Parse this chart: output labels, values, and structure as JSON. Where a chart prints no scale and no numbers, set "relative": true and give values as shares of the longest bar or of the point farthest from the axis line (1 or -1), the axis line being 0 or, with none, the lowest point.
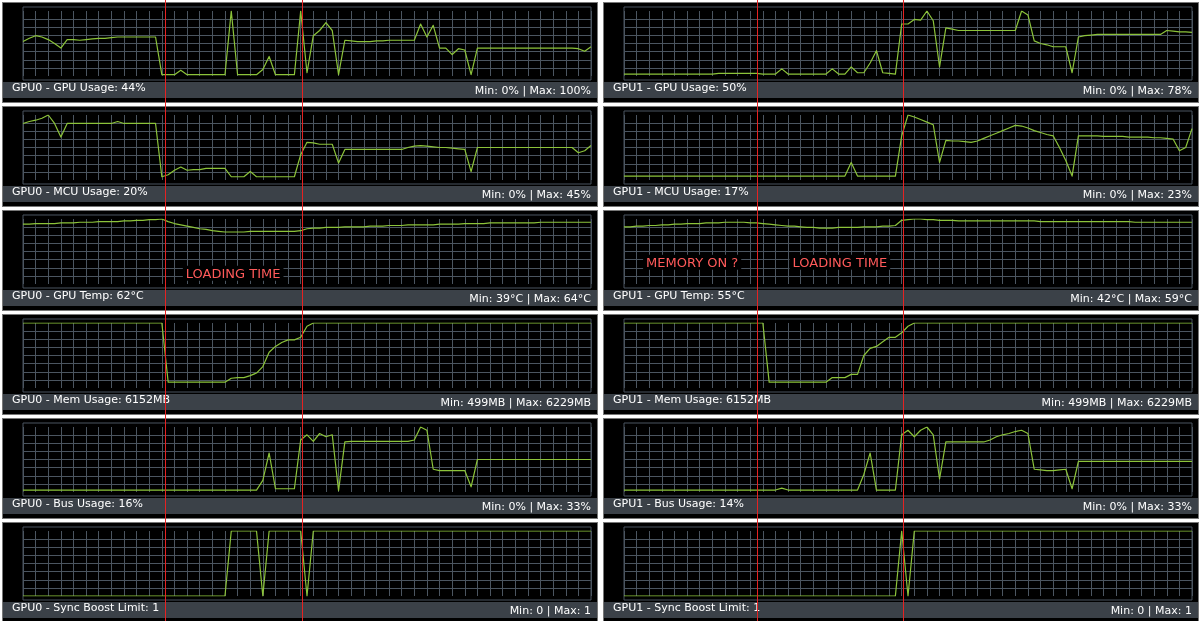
{
  "chart_data": [
    {
      "type": "line",
      "title": "GPU0 - GPU Usage: 44%",
      "annotations": [
        "Min: 0% | Max: 100%"
      ],
      "relative": true,
      "color": "#8cc33a",
      "marker": "none",
      "grid": true,
      "categories": [
        null,
        null,
        null,
        null,
        null,
        null,
        null,
        null,
        null,
        null,
        null,
        null,
        null,
        null,
        null,
        null,
        null,
        null,
        null,
        null,
        null,
        null,
        null,
        null,
        null,
        null,
        null,
        null,
        null,
        null,
        null,
        null,
        null,
        null,
        null,
        null,
        null,
        null,
        null,
        null,
        null,
        null,
        null,
        null,
        null,
        null,
        null,
        null,
        null,
        null,
        null,
        null,
        null,
        null,
        null,
        null,
        null,
        null,
        null,
        null,
        null,
        null,
        null,
        null,
        null,
        null,
        null,
        null,
        null,
        null,
        null,
        null,
        null,
        null,
        null,
        null,
        null,
        null,
        null,
        null,
        null,
        null,
        null,
        null,
        null,
        null,
        null,
        null,
        null,
        null,
        null
      ],
      "values": [
        0.53,
        0.58,
        0.62,
        0.6,
        0.56,
        0.5,
        0.43,
        0.56,
        0.56,
        0.55,
        0.56,
        0.57,
        0.58,
        0.58,
        0.59,
        0.6,
        0.6,
        0.6,
        0.6,
        0.6,
        0.6,
        0.6,
        0.02,
        0.02,
        0.02,
        0.09,
        0.02,
        0.02,
        0.02,
        0.02,
        0.02,
        0.02,
        0.02,
        1,
        0.02,
        0.02,
        0.02,
        0.02,
        0.1,
        0.3,
        0.02,
        0.02,
        0.02,
        0.02,
        1,
        0.05,
        0.62,
        0.7,
        0.82,
        0.7,
        0.02,
        0.55,
        0.54,
        0.53,
        0.53,
        0.53,
        0.54,
        0.54,
        0.55,
        0.55,
        0.55,
        0.55,
        0.55,
        0.8,
        0.6,
        0.78,
        0.43,
        0.43,
        0.33,
        0.42,
        0.4,
        0.02,
        0.43,
        0.43,
        0.43,
        0.43,
        0.43,
        0.43,
        0.43,
        0.43,
        0.43,
        0.43,
        0.43,
        0.43,
        0.43,
        0.43,
        0.43,
        0.43,
        0.42,
        0.38,
        0.45
      ]
    },
    {
      "type": "line",
      "title": "GPU1 - GPU Usage: 50%",
      "annotations": [
        "Min: 0% | Max: 78%"
      ],
      "relative": true,
      "color": "#8cc33a",
      "marker": "none",
      "grid": true,
      "categories": [
        null,
        null,
        null,
        null,
        null,
        null,
        null,
        null,
        null,
        null,
        null,
        null,
        null,
        null,
        null,
        null,
        null,
        null,
        null,
        null,
        null,
        null,
        null,
        null,
        null,
        null,
        null,
        null,
        null,
        null,
        null,
        null,
        null,
        null,
        null,
        null,
        null,
        null,
        null,
        null,
        null,
        null,
        null,
        null,
        null,
        null,
        null,
        null,
        null,
        null,
        null,
        null,
        null,
        null,
        null,
        null,
        null,
        null,
        null,
        null,
        null,
        null,
        null,
        null,
        null,
        null,
        null,
        null,
        null,
        null,
        null,
        null,
        null,
        null,
        null,
        null,
        null,
        null,
        null,
        null,
        null,
        null,
        null,
        null,
        null,
        null,
        null,
        null,
        null,
        null,
        null
      ],
      "values": [
        0.03,
        0.03,
        0.03,
        0.03,
        0.03,
        0.03,
        0.03,
        0.03,
        0.03,
        0.03,
        0.03,
        0.03,
        0.03,
        0.03,
        0.03,
        0.04,
        0.04,
        0.04,
        0.04,
        0.04,
        0.04,
        0.04,
        0.03,
        0.03,
        0.03,
        0.11,
        0.03,
        0.03,
        0.03,
        0.03,
        0.03,
        0.03,
        0.03,
        0.11,
        0.03,
        0.03,
        0.14,
        0.05,
        0.05,
        0.2,
        0.39,
        0.05,
        0.04,
        0.03,
        0.8,
        0.8,
        0.87,
        0.86,
        1,
        0.85,
        0.14,
        0.74,
        0.72,
        0.7,
        0.7,
        0.7,
        0.7,
        0.7,
        0.7,
        0.7,
        0.7,
        0.7,
        0.7,
        1,
        0.94,
        0.54,
        0.5,
        0.48,
        0.45,
        0.45,
        0.45,
        0.05,
        0.6,
        0.62,
        0.63,
        0.64,
        0.64,
        0.64,
        0.64,
        0.64,
        0.64,
        0.64,
        0.64,
        0.64,
        0.64,
        0.64,
        0.7,
        0.69,
        0.68,
        0.68,
        0.67
      ]
    },
    {
      "type": "line",
      "title": "GPU0 - MCU Usage: 20%",
      "annotations": [
        "Min: 0% | Max: 45%"
      ],
      "relative": true,
      "color": "#8cc33a",
      "marker": "none",
      "grid": true,
      "categories": [
        null,
        null,
        null,
        null,
        null,
        null,
        null,
        null,
        null,
        null,
        null,
        null,
        null,
        null,
        null,
        null,
        null,
        null,
        null,
        null,
        null,
        null,
        null,
        null,
        null,
        null,
        null,
        null,
        null,
        null,
        null,
        null,
        null,
        null,
        null,
        null,
        null,
        null,
        null,
        null,
        null,
        null,
        null,
        null,
        null,
        null,
        null,
        null,
        null,
        null,
        null,
        null,
        null,
        null,
        null,
        null,
        null,
        null,
        null,
        null,
        null,
        null,
        null,
        null,
        null,
        null,
        null,
        null,
        null,
        null,
        null,
        null,
        null,
        null,
        null,
        null,
        null,
        null,
        null,
        null,
        null,
        null,
        null,
        null,
        null,
        null,
        null,
        null,
        null,
        null,
        null
      ],
      "values": [
        0.87,
        0.9,
        0.92,
        0.95,
        1,
        0.87,
        0.66,
        0.87,
        0.87,
        0.87,
        0.87,
        0.87,
        0.87,
        0.87,
        0.87,
        0.9,
        0.87,
        0.87,
        0.87,
        0.87,
        0.87,
        0.87,
        0.05,
        0.08,
        0.15,
        0.2,
        0.15,
        0.16,
        0.16,
        0.18,
        0.18,
        0.18,
        0.18,
        0.05,
        0.05,
        0.05,
        0.13,
        0.05,
        0.05,
        0.05,
        0.05,
        0.05,
        0.05,
        0.05,
        0.39,
        0.58,
        0.57,
        0.55,
        0.55,
        0.55,
        0.26,
        0.47,
        0.47,
        0.47,
        0.47,
        0.47,
        0.47,
        0.47,
        0.47,
        0.47,
        0.47,
        0.5,
        0.52,
        0.53,
        0.52,
        0.51,
        0.5,
        0.5,
        0.49,
        0.48,
        0.47,
        0.13,
        0.5,
        0.5,
        0.5,
        0.5,
        0.5,
        0.5,
        0.5,
        0.5,
        0.5,
        0.5,
        0.5,
        0.5,
        0.5,
        0.5,
        0.5,
        0.5,
        0.42,
        0.45,
        0.53
      ]
    },
    {
      "type": "line",
      "title": "GPU1 - MCU Usage: 17%",
      "annotations": [
        "Min: 0% | Max: 23%"
      ],
      "relative": true,
      "color": "#8cc33a",
      "marker": "none",
      "grid": true,
      "categories": [
        null,
        null,
        null,
        null,
        null,
        null,
        null,
        null,
        null,
        null,
        null,
        null,
        null,
        null,
        null,
        null,
        null,
        null,
        null,
        null,
        null,
        null,
        null,
        null,
        null,
        null,
        null,
        null,
        null,
        null,
        null,
        null,
        null,
        null,
        null,
        null,
        null,
        null,
        null,
        null,
        null,
        null,
        null,
        null,
        null,
        null,
        null,
        null,
        null,
        null,
        null,
        null,
        null,
        null,
        null,
        null,
        null,
        null,
        null,
        null,
        null,
        null,
        null,
        null,
        null,
        null,
        null,
        null,
        null,
        null,
        null,
        null,
        null,
        null,
        null,
        null,
        null,
        null,
        null,
        null,
        null,
        null,
        null,
        null,
        null,
        null,
        null,
        null,
        null,
        null,
        null
      ],
      "values": [
        0.06,
        0.06,
        0.06,
        0.06,
        0.06,
        0.06,
        0.06,
        0.06,
        0.06,
        0.06,
        0.06,
        0.06,
        0.06,
        0.06,
        0.06,
        0.06,
        0.06,
        0.06,
        0.06,
        0.06,
        0.06,
        0.06,
        0.06,
        0.06,
        0.06,
        0.06,
        0.06,
        0.06,
        0.06,
        0.06,
        0.06,
        0.06,
        0.06,
        0.06,
        0.06,
        0.06,
        0.27,
        0.06,
        0.06,
        0.06,
        0.06,
        0.06,
        0.06,
        0.06,
        0.68,
        1,
        0.97,
        0.93,
        0.89,
        0.85,
        0.27,
        0.61,
        0.6,
        0.6,
        0.59,
        0.58,
        0.6,
        0.64,
        0.68,
        0.72,
        0.76,
        0.8,
        0.84,
        0.83,
        0.8,
        0.76,
        0.73,
        0.7,
        0.68,
        0.5,
        0.3,
        0.06,
        0.68,
        0.68,
        0.68,
        0.68,
        0.67,
        0.67,
        0.67,
        0.67,
        0.66,
        0.66,
        0.66,
        0.66,
        0.65,
        0.65,
        0.64,
        0.63,
        0.45,
        0.5,
        0.79
      ]
    },
    {
      "type": "line",
      "title": "GPU0 - GPU Temp: 62°C",
      "annotations": [
        "Min: 39°C | Max: 64°C",
        "LOADING TIME"
      ],
      "relative": true,
      "color": "#8cc33a",
      "marker": "none",
      "grid": true,
      "categories": [
        null,
        null,
        null,
        null,
        null,
        null,
        null,
        null,
        null,
        null,
        null,
        null,
        null,
        null,
        null,
        null,
        null,
        null,
        null,
        null,
        null,
        null,
        null,
        null,
        null,
        null,
        null,
        null,
        null,
        null,
        null,
        null,
        null,
        null,
        null,
        null,
        null,
        null,
        null,
        null,
        null,
        null,
        null,
        null,
        null,
        null,
        null,
        null,
        null,
        null,
        null,
        null,
        null,
        null,
        null,
        null,
        null,
        null,
        null,
        null,
        null,
        null,
        null,
        null,
        null,
        null,
        null,
        null,
        null,
        null,
        null,
        null,
        null,
        null,
        null,
        null,
        null,
        null,
        null,
        null,
        null,
        null,
        null,
        null,
        null,
        null,
        null,
        null,
        null,
        null,
        null
      ],
      "values": [
        0.92,
        0.92,
        0.93,
        0.93,
        0.93,
        0.93,
        0.94,
        0.94,
        0.94,
        0.95,
        0.95,
        0.95,
        0.96,
        0.96,
        0.96,
        0.96,
        0.97,
        0.97,
        0.98,
        0.98,
        0.99,
        0.99,
        1,
        0.96,
        0.93,
        0.91,
        0.89,
        0.87,
        0.85,
        0.84,
        0.82,
        0.81,
        0.8,
        0.8,
        0.8,
        0.8,
        0.81,
        0.81,
        0.81,
        0.81,
        0.81,
        0.81,
        0.81,
        0.81,
        0.82,
        0.85,
        0.86,
        0.86,
        0.87,
        0.87,
        0.87,
        0.88,
        0.88,
        0.88,
        0.88,
        0.89,
        0.89,
        0.89,
        0.9,
        0.9,
        0.9,
        0.91,
        0.91,
        0.91,
        0.91,
        0.91,
        0.92,
        0.92,
        0.92,
        0.92,
        0.93,
        0.93,
        0.93,
        0.93,
        0.94,
        0.94,
        0.94,
        0.94,
        0.94,
        0.94,
        0.94,
        0.94,
        0.95,
        0.95,
        0.95,
        0.95,
        0.95,
        0.95,
        0.95,
        0.95,
        0.95
      ]
    },
    {
      "type": "line",
      "title": "GPU1 - GPU Temp: 55°C",
      "annotations": [
        "Min: 42°C | Max: 59°C",
        "MEMORY ON ?",
        "LOADING TIME"
      ],
      "relative": true,
      "color": "#8cc33a",
      "marker": "none",
      "grid": true,
      "categories": [
        null,
        null,
        null,
        null,
        null,
        null,
        null,
        null,
        null,
        null,
        null,
        null,
        null,
        null,
        null,
        null,
        null,
        null,
        null,
        null,
        null,
        null,
        null,
        null,
        null,
        null,
        null,
        null,
        null,
        null,
        null,
        null,
        null,
        null,
        null,
        null,
        null,
        null,
        null,
        null,
        null,
        null,
        null,
        null,
        null,
        null,
        null,
        null,
        null,
        null,
        null,
        null,
        null,
        null,
        null,
        null,
        null,
        null,
        null,
        null,
        null,
        null,
        null,
        null,
        null,
        null,
        null,
        null,
        null,
        null,
        null,
        null,
        null,
        null,
        null,
        null,
        null,
        null,
        null,
        null,
        null,
        null,
        null,
        null,
        null,
        null,
        null,
        null,
        null,
        null,
        null
      ],
      "values": [
        0.88,
        0.88,
        0.89,
        0.89,
        0.9,
        0.9,
        0.91,
        0.91,
        0.92,
        0.92,
        0.93,
        0.93,
        0.93,
        0.94,
        0.94,
        0.94,
        0.95,
        0.95,
        0.95,
        0.95,
        0.94,
        0.94,
        0.93,
        0.92,
        0.91,
        0.9,
        0.89,
        0.89,
        0.88,
        0.87,
        0.87,
        0.86,
        0.86,
        0.86,
        0.87,
        0.87,
        0.87,
        0.87,
        0.88,
        0.88,
        0.88,
        0.89,
        0.89,
        0.9,
        0.98,
        0.99,
        1,
        1,
        0.99,
        0.99,
        0.98,
        0.98,
        0.98,
        0.97,
        0.97,
        0.97,
        0.97,
        0.97,
        0.97,
        0.97,
        0.97,
        0.97,
        0.97,
        0.97,
        0.97,
        0.97,
        0.96,
        0.96,
        0.96,
        0.96,
        0.96,
        0.96,
        0.96,
        0.96,
        0.96,
        0.96,
        0.96,
        0.96,
        0.96,
        0.96,
        0.96,
        0.95,
        0.95,
        0.95,
        0.95,
        0.95,
        0.95,
        0.95,
        0.95,
        0.95,
        0.95
      ]
    },
    {
      "type": "line",
      "title": "GPU0 - Mem Usage: 6152MB",
      "annotations": [
        "Min: 499MB | Max: 6229MB"
      ],
      "relative": true,
      "color": "#8cc33a",
      "marker": "none",
      "grid": true,
      "categories": [
        null,
        null,
        null,
        null,
        null,
        null,
        null,
        null,
        null,
        null,
        null,
        null,
        null,
        null,
        null,
        null,
        null,
        null,
        null,
        null,
        null,
        null,
        null,
        null,
        null,
        null,
        null,
        null,
        null,
        null,
        null,
        null,
        null,
        null,
        null,
        null,
        null,
        null,
        null,
        null,
        null,
        null,
        null,
        null,
        null,
        null,
        null,
        null,
        null,
        null,
        null,
        null,
        null,
        null,
        null,
        null,
        null,
        null,
        null,
        null,
        null,
        null,
        null,
        null,
        null,
        null,
        null,
        null,
        null,
        null,
        null,
        null,
        null,
        null,
        null,
        null,
        null,
        null,
        null,
        null,
        null,
        null,
        null,
        null,
        null,
        null,
        null,
        null,
        null,
        null,
        null
      ],
      "values": [
        1,
        1,
        1,
        1,
        1,
        1,
        1,
        1,
        1,
        1,
        1,
        1,
        1,
        1,
        1,
        1,
        1,
        1,
        1,
        1,
        1,
        1,
        1,
        0.09,
        0.09,
        0.09,
        0.09,
        0.09,
        0.09,
        0.09,
        0.09,
        0.09,
        0.09,
        0.15,
        0.16,
        0.16,
        0.19,
        0.23,
        0.33,
        0.55,
        0.64,
        0.7,
        0.74,
        0.74,
        0.78,
        0.95,
        1,
        1,
        1,
        1,
        1,
        1,
        1,
        1,
        1,
        1,
        1,
        1,
        1,
        1,
        1,
        1,
        1,
        1,
        1,
        1,
        1,
        1,
        1,
        1,
        1,
        1,
        1,
        1,
        1,
        1,
        1,
        1,
        1,
        1,
        1,
        1,
        1,
        1,
        1,
        1,
        1,
        1,
        1,
        1,
        1
      ]
    },
    {
      "type": "line",
      "title": "GPU1 - Mem Usage: 6152MB",
      "annotations": [
        "Min: 499MB | Max: 6229MB"
      ],
      "relative": true,
      "color": "#8cc33a",
      "marker": "none",
      "grid": true,
      "categories": [
        null,
        null,
        null,
        null,
        null,
        null,
        null,
        null,
        null,
        null,
        null,
        null,
        null,
        null,
        null,
        null,
        null,
        null,
        null,
        null,
        null,
        null,
        null,
        null,
        null,
        null,
        null,
        null,
        null,
        null,
        null,
        null,
        null,
        null,
        null,
        null,
        null,
        null,
        null,
        null,
        null,
        null,
        null,
        null,
        null,
        null,
        null,
        null,
        null,
        null,
        null,
        null,
        null,
        null,
        null,
        null,
        null,
        null,
        null,
        null,
        null,
        null,
        null,
        null,
        null,
        null,
        null,
        null,
        null,
        null,
        null,
        null,
        null,
        null,
        null,
        null,
        null,
        null,
        null,
        null,
        null,
        null,
        null,
        null,
        null,
        null,
        null,
        null,
        null,
        null,
        null
      ],
      "values": [
        1,
        1,
        1,
        1,
        1,
        1,
        1,
        1,
        1,
        1,
        1,
        1,
        1,
        1,
        1,
        1,
        1,
        1,
        1,
        1,
        1,
        1,
        1,
        0.09,
        0.09,
        0.09,
        0.09,
        0.09,
        0.09,
        0.09,
        0.09,
        0.09,
        0.09,
        0.16,
        0.16,
        0.16,
        0.21,
        0.21,
        0.5,
        0.61,
        0.64,
        0.71,
        0.78,
        0.78,
        0.85,
        0.95,
        1,
        1,
        1,
        1,
        1,
        1,
        1,
        1,
        1,
        1,
        1,
        1,
        1,
        1,
        1,
        1,
        1,
        1,
        1,
        1,
        1,
        1,
        1,
        1,
        1,
        1,
        1,
        1,
        1,
        1,
        1,
        1,
        1,
        1,
        1,
        1,
        1,
        1,
        1,
        1,
        1,
        1,
        1,
        1,
        1
      ]
    },
    {
      "type": "line",
      "title": "GPU0 - Bus Usage: 16%",
      "annotations": [
        "Min: 0% | Max: 33%"
      ],
      "relative": true,
      "color": "#8cc33a",
      "marker": "none",
      "grid": true,
      "categories": [
        null,
        null,
        null,
        null,
        null,
        null,
        null,
        null,
        null,
        null,
        null,
        null,
        null,
        null,
        null,
        null,
        null,
        null,
        null,
        null,
        null,
        null,
        null,
        null,
        null,
        null,
        null,
        null,
        null,
        null,
        null,
        null,
        null,
        null,
        null,
        null,
        null,
        null,
        null,
        null,
        null,
        null,
        null,
        null,
        null,
        null,
        null,
        null,
        null,
        null,
        null,
        null,
        null,
        null,
        null,
        null,
        null,
        null,
        null,
        null,
        null,
        null,
        null,
        null,
        null,
        null,
        null,
        null,
        null,
        null,
        null,
        null,
        null,
        null,
        null,
        null,
        null,
        null,
        null,
        null,
        null,
        null,
        null,
        null,
        null,
        null,
        null,
        null,
        null,
        null,
        null
      ],
      "values": [
        0.03,
        0.03,
        0.03,
        0.03,
        0.03,
        0.03,
        0.03,
        0.03,
        0.03,
        0.03,
        0.03,
        0.03,
        0.03,
        0.03,
        0.03,
        0.03,
        0.03,
        0.03,
        0.03,
        0.03,
        0.03,
        0.03,
        0.03,
        0.03,
        0.03,
        0.03,
        0.03,
        0.03,
        0.03,
        0.03,
        0.03,
        0.03,
        0.03,
        0.03,
        0.03,
        0.03,
        0.03,
        0.03,
        0.18,
        0.6,
        0.05,
        0.05,
        0.05,
        0.05,
        0.8,
        0.88,
        0.78,
        0.9,
        0.85,
        0.88,
        0.02,
        0.77,
        0.78,
        0.78,
        0.78,
        0.78,
        0.78,
        0.78,
        0.78,
        0.78,
        0.78,
        0.78,
        0.8,
        1,
        0.95,
        0.35,
        0.33,
        0.33,
        0.33,
        0.33,
        0.33,
        0.08,
        0.5,
        0.5,
        0.5,
        0.5,
        0.5,
        0.5,
        0.5,
        0.5,
        0.5,
        0.5,
        0.5,
        0.5,
        0.5,
        0.5,
        0.5,
        0.5,
        0.5,
        0.5,
        0.5
      ]
    },
    {
      "type": "line",
      "title": "GPU1 - Bus Usage: 14%",
      "annotations": [
        "Min: 0% | Max: 33%"
      ],
      "relative": true,
      "color": "#8cc33a",
      "marker": "none",
      "grid": true,
      "categories": [
        null,
        null,
        null,
        null,
        null,
        null,
        null,
        null,
        null,
        null,
        null,
        null,
        null,
        null,
        null,
        null,
        null,
        null,
        null,
        null,
        null,
        null,
        null,
        null,
        null,
        null,
        null,
        null,
        null,
        null,
        null,
        null,
        null,
        null,
        null,
        null,
        null,
        null,
        null,
        null,
        null,
        null,
        null,
        null,
        null,
        null,
        null,
        null,
        null,
        null,
        null,
        null,
        null,
        null,
        null,
        null,
        null,
        null,
        null,
        null,
        null,
        null,
        null,
        null,
        null,
        null,
        null,
        null,
        null,
        null,
        null,
        null,
        null,
        null,
        null,
        null,
        null,
        null,
        null,
        null,
        null,
        null,
        null,
        null,
        null,
        null,
        null,
        null,
        null,
        null,
        null
      ],
      "values": [
        0.03,
        0.03,
        0.03,
        0.03,
        0.03,
        0.03,
        0.03,
        0.03,
        0.03,
        0.03,
        0.03,
        0.03,
        0.03,
        0.03,
        0.03,
        0.03,
        0.03,
        0.03,
        0.03,
        0.03,
        0.03,
        0.03,
        0.03,
        0.03,
        0.03,
        0.06,
        0.03,
        0.03,
        0.03,
        0.03,
        0.03,
        0.03,
        0.03,
        0.03,
        0.03,
        0.03,
        0.03,
        0.03,
        0.27,
        0.6,
        0.03,
        0.03,
        0.03,
        0.03,
        0.88,
        0.95,
        0.85,
        0.95,
        1,
        0.88,
        0.2,
        0.77,
        0.77,
        0.77,
        0.77,
        0.77,
        0.77,
        0.77,
        0.8,
        0.85,
        0.88,
        0.9,
        0.93,
        0.95,
        0.9,
        0.35,
        0.34,
        0.33,
        0.33,
        0.34,
        0.35,
        0.05,
        0.47,
        0.47,
        0.47,
        0.47,
        0.47,
        0.47,
        0.47,
        0.47,
        0.47,
        0.47,
        0.47,
        0.47,
        0.47,
        0.47,
        0.47,
        0.47,
        0.47,
        0.47,
        0.47
      ]
    },
    {
      "type": "line",
      "title": "GPU0 - Sync Boost Limit: 1",
      "annotations": [
        "Min: 0 | Max: 1"
      ],
      "relative": true,
      "color": "#8cc33a",
      "marker": "none",
      "grid": true,
      "categories": [
        null,
        null,
        null,
        null,
        null,
        null,
        null,
        null,
        null,
        null,
        null,
        null,
        null,
        null,
        null,
        null,
        null,
        null,
        null,
        null,
        null,
        null,
        null,
        null,
        null,
        null,
        null,
        null,
        null,
        null,
        null,
        null,
        null,
        null,
        null,
        null,
        null,
        null,
        null,
        null,
        null,
        null,
        null,
        null,
        null,
        null,
        null,
        null,
        null,
        null,
        null,
        null,
        null,
        null,
        null,
        null,
        null,
        null,
        null,
        null,
        null,
        null,
        null,
        null,
        null,
        null,
        null,
        null,
        null,
        null,
        null,
        null,
        null,
        null,
        null,
        null,
        null,
        null,
        null,
        null,
        null,
        null,
        null,
        null,
        null,
        null,
        null,
        null,
        null,
        null,
        null
      ],
      "values": [
        0,
        0,
        0,
        0,
        0,
        0,
        0,
        0,
        0,
        0,
        0,
        0,
        0,
        0,
        0,
        0,
        0,
        0,
        0,
        0,
        0,
        0,
        0,
        0,
        0,
        0,
        0,
        0,
        0,
        0,
        0,
        0,
        0,
        1,
        1,
        1,
        1,
        1,
        0,
        1,
        1,
        1,
        1,
        1,
        1,
        0,
        1,
        1,
        1,
        1,
        1,
        1,
        1,
        1,
        1,
        1,
        1,
        1,
        1,
        1,
        1,
        1,
        1,
        1,
        1,
        1,
        1,
        1,
        1,
        1,
        1,
        1,
        1,
        1,
        1,
        1,
        1,
        1,
        1,
        1,
        1,
        1,
        1,
        1,
        1,
        1,
        1,
        1,
        1,
        1,
        1
      ]
    },
    {
      "type": "line",
      "title": "GPU1 - Sync Boost Limit: 1",
      "annotations": [
        "Min: 0 | Max: 1"
      ],
      "relative": true,
      "color": "#8cc33a",
      "marker": "none",
      "grid": true,
      "categories": [
        null,
        null,
        null,
        null,
        null,
        null,
        null,
        null,
        null,
        null,
        null,
        null,
        null,
        null,
        null,
        null,
        null,
        null,
        null,
        null,
        null,
        null,
        null,
        null,
        null,
        null,
        null,
        null,
        null,
        null,
        null,
        null,
        null,
        null,
        null,
        null,
        null,
        null,
        null,
        null,
        null,
        null,
        null,
        null,
        null,
        null,
        null,
        null,
        null,
        null,
        null,
        null,
        null,
        null,
        null,
        null,
        null,
        null,
        null,
        null,
        null,
        null,
        null,
        null,
        null,
        null,
        null,
        null,
        null,
        null,
        null,
        null,
        null,
        null,
        null,
        null,
        null,
        null,
        null,
        null,
        null,
        null,
        null,
        null,
        null,
        null,
        null,
        null,
        null,
        null,
        null
      ],
      "values": [
        0,
        0,
        0,
        0,
        0,
        0,
        0,
        0,
        0,
        0,
        0,
        0,
        0,
        0,
        0,
        0,
        0,
        0,
        0,
        0,
        0,
        0,
        0,
        0,
        0,
        0,
        0,
        0,
        0,
        0,
        0,
        0,
        0,
        0,
        0,
        0,
        0,
        0,
        0,
        0,
        0,
        0,
        0,
        0,
        1,
        0,
        1,
        1,
        1,
        1,
        1,
        1,
        1,
        1,
        1,
        1,
        1,
        1,
        1,
        1,
        1,
        1,
        1,
        1,
        1,
        1,
        1,
        1,
        1,
        1,
        1,
        1,
        1,
        1,
        1,
        1,
        1,
        1,
        1,
        1,
        1,
        1,
        1,
        1,
        1,
        1,
        1,
        1,
        1,
        1,
        1
      ]
    }
  ]
}
